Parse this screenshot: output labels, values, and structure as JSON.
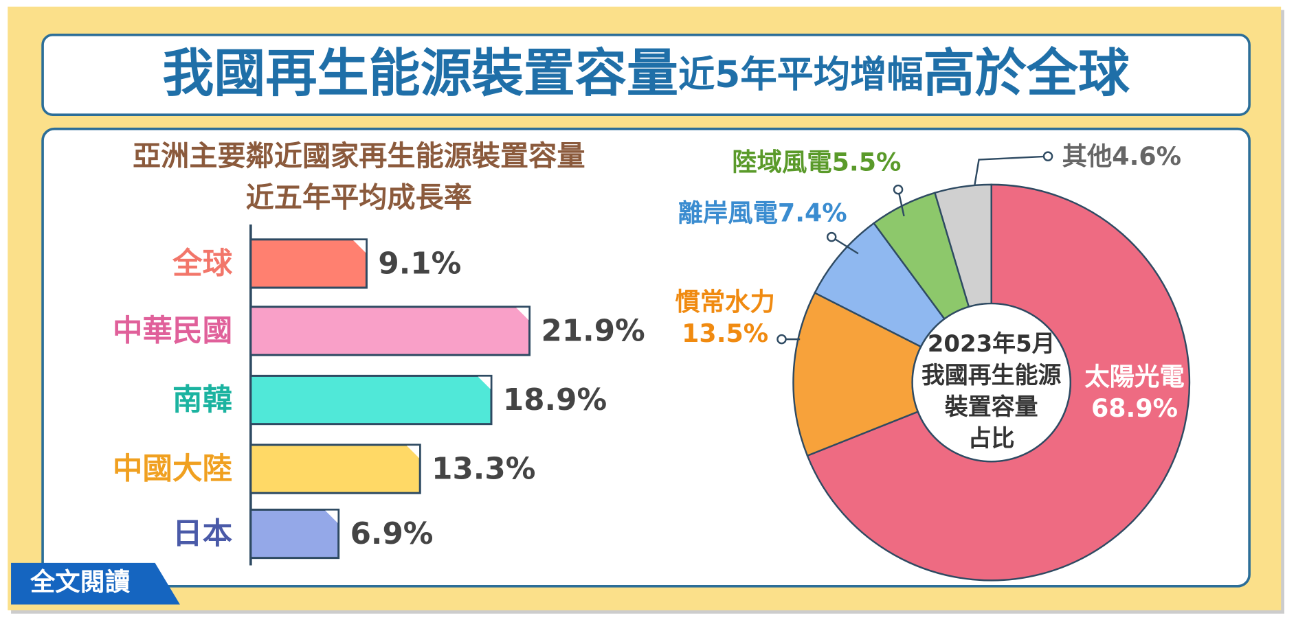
{
  "header": {
    "title": [
      "我國再生能源裝置容量",
      "近5年平均增幅",
      "高於全球"
    ]
  },
  "button": "全文閱讀",
  "chart_data": [
    {
      "type": "hbar",
      "title": [
        "亞洲主要鄰近國家再生能源裝置容量",
        "近五年平均成長率"
      ],
      "categories": [
        "全球",
        "中華民國",
        "南韓",
        "中國大陸",
        "日本"
      ],
      "values": [
        9.1,
        21.9,
        18.9,
        13.3,
        6.9
      ],
      "value_labels": [
        "9.1%",
        "21.9%",
        "18.9%",
        "13.3%",
        "6.9%"
      ],
      "colors": [
        "#ff8070",
        "#f9a0c8",
        "#50e8d8",
        "#ffd966",
        "#94a8e8"
      ],
      "label_colors": [
        "#f2766a",
        "#e0609a",
        "#1bb3a0",
        "#f0a020",
        "#4a5aa8"
      ]
    },
    {
      "type": "donut",
      "center_text": [
        "2023年5月",
        "我國再生能源",
        "裝置容量",
        "占比"
      ],
      "categories": [
        "太陽光電",
        "慣常水力",
        "離岸風電",
        "陸域風電",
        "其他"
      ],
      "values": [
        68.9,
        13.5,
        7.4,
        5.5,
        4.6
      ],
      "value_labels": [
        "68.9%",
        "13.5%",
        "7.4%",
        "5.5%",
        "4.6%"
      ],
      "colors": [
        "#ee6b82",
        "#f7a23b",
        "#8fb8f0",
        "#8dc86b",
        "#d0d0d0"
      ],
      "label_colors": [
        "#ffffff",
        "#f08a10",
        "#3a8cd0",
        "#5a9a2a",
        "#666666"
      ]
    }
  ]
}
